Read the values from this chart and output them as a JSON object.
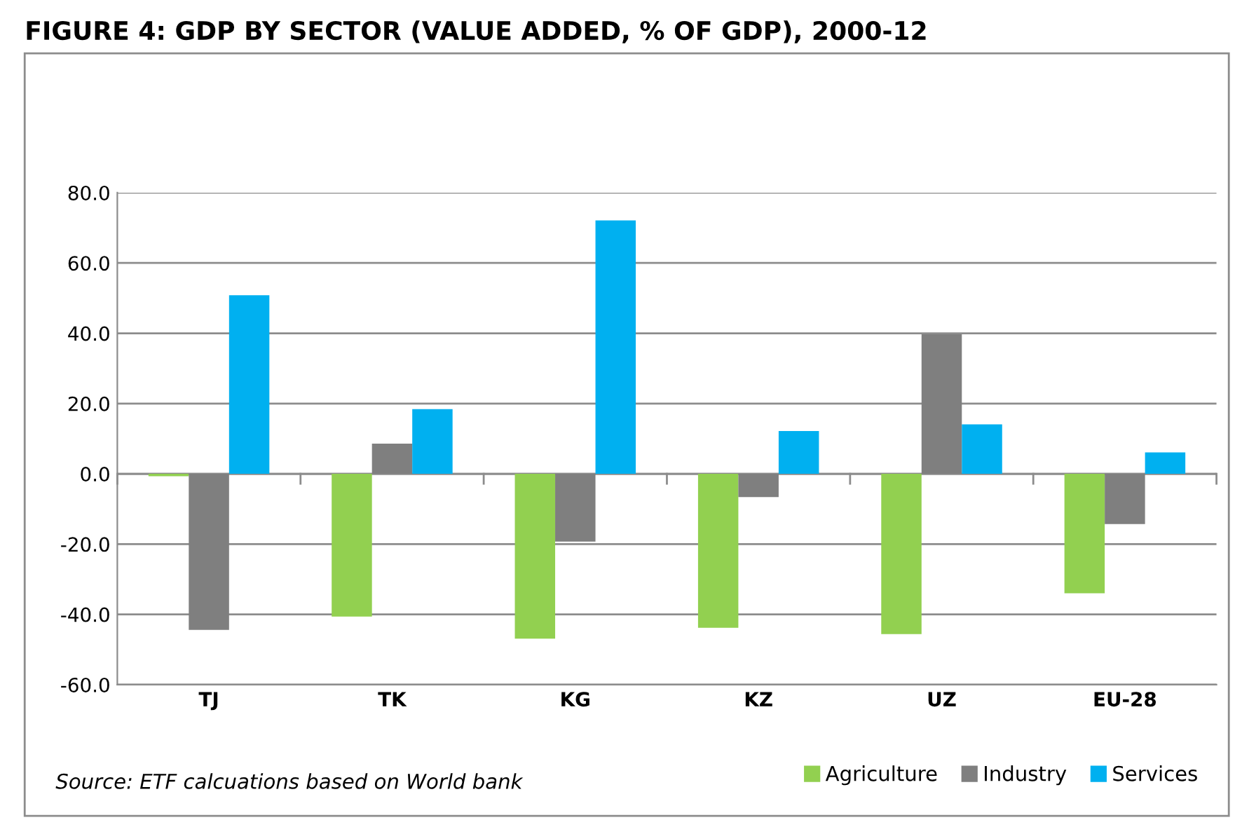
{
  "chart_data": {
    "type": "bar",
    "title": "FIGURE 4: GDP BY SECTOR (VALUE ADDED, % OF GDP), 2000-12",
    "categories": [
      "TJ",
      "TK",
      "KG",
      "KZ",
      "UZ",
      "EU-28"
    ],
    "series": [
      {
        "name": "Agriculture",
        "color": "#92d050",
        "values": [
          -0.7,
          -40.6,
          -46.9,
          -43.8,
          -45.6,
          -34.0
        ]
      },
      {
        "name": "Industry",
        "color": "#7f7f7f",
        "values": [
          -44.4,
          8.6,
          -19.3,
          -6.6,
          39.7,
          -14.3
        ]
      },
      {
        "name": "Services",
        "color": "#00b0f0",
        "values": [
          50.8,
          18.4,
          72.1,
          12.2,
          14.1,
          6.1
        ]
      }
    ],
    "ylim": [
      -60,
      80
    ],
    "yticks": [
      {
        "value": -60,
        "label": "-60.0"
      },
      {
        "value": -40,
        "label": "-40.0"
      },
      {
        "value": -20,
        "label": "-20.0"
      },
      {
        "value": 0,
        "label": "0.0"
      },
      {
        "value": 20,
        "label": "20.0"
      },
      {
        "value": 40,
        "label": "40.0"
      },
      {
        "value": 60,
        "label": "60.0"
      },
      {
        "value": 80,
        "label": "80.0"
      }
    ],
    "grid": "y",
    "legend": "bottom right",
    "annotations": [
      "Source: ETF calcuations based on World bank"
    ]
  }
}
